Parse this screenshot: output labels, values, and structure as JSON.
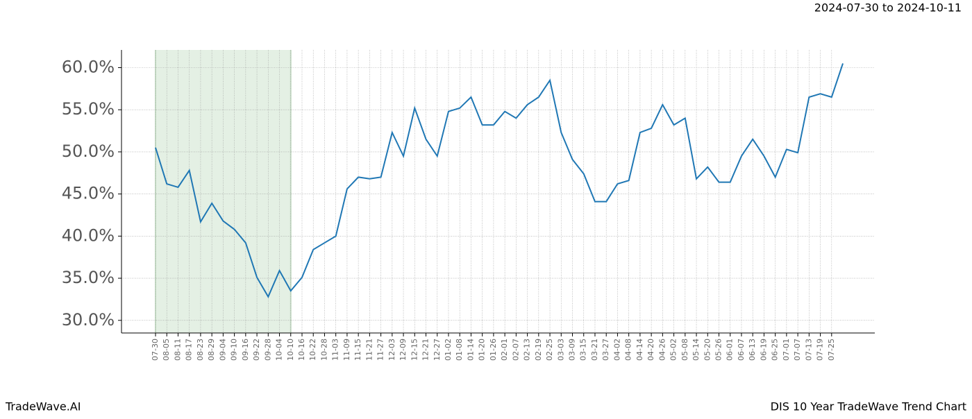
{
  "chart_data": {
    "type": "line",
    "subtitle": "2024-07-30 to 2024-10-11",
    "footer_left": "TradeWave.AI",
    "footer_right": "DIS 10 Year TradeWave Trend Chart",
    "categories": [
      "07-30",
      "08-05",
      "08-11",
      "08-17",
      "08-23",
      "08-29",
      "09-04",
      "09-10",
      "09-16",
      "09-22",
      "09-28",
      "10-04",
      "10-10",
      "10-16",
      "10-22",
      "10-28",
      "11-03",
      "11-09",
      "11-15",
      "11-21",
      "11-27",
      "12-03",
      "12-09",
      "12-15",
      "12-21",
      "12-27",
      "01-02",
      "01-08",
      "01-14",
      "01-20",
      "01-26",
      "02-01",
      "02-07",
      "02-13",
      "02-19",
      "02-25",
      "03-03",
      "03-09",
      "03-15",
      "03-21",
      "03-27",
      "04-02",
      "04-08",
      "04-14",
      "04-20",
      "04-26",
      "05-02",
      "05-08",
      "05-14",
      "05-20",
      "05-26",
      "06-01",
      "06-07",
      "06-13",
      "06-19",
      "06-25",
      "07-01",
      "07-07",
      "07-13",
      "07-19",
      "07-25",
      null
    ],
    "series": [
      {
        "color": "#1f77b4",
        "values": [
          50.5,
          46.2,
          45.8,
          47.8,
          41.7,
          43.9,
          41.8,
          40.8,
          39.2,
          35.1,
          32.8,
          35.9,
          33.5,
          35.1,
          38.4,
          39.2,
          40.0,
          45.6,
          47.0,
          46.8,
          47.0,
          52.3,
          49.5,
          55.2,
          51.5,
          49.5,
          54.8,
          55.2,
          56.5,
          53.2,
          53.2,
          54.8,
          54.0,
          55.6,
          56.5,
          58.5,
          52.3,
          49.1,
          47.4,
          44.1,
          44.1,
          46.2,
          46.6,
          52.3,
          52.8,
          55.6,
          53.2,
          54.0,
          46.8,
          48.2,
          46.4,
          46.4,
          49.5,
          51.5,
          49.5,
          47.0,
          50.3,
          49.9,
          56.5,
          56.9,
          56.5,
          60.5
        ]
      }
    ],
    "highlight": [
      "07-30",
      "10-10"
    ],
    "highlight_color": "#d9ead9",
    "ylim": [
      28.5,
      62.1
    ],
    "yticks": [
      {
        "value": 30,
        "label": "30.0%"
      },
      {
        "value": 35,
        "label": "35.0%"
      },
      {
        "value": 40,
        "label": "40.0%"
      },
      {
        "value": 45,
        "label": "45.0%"
      },
      {
        "value": 50,
        "label": "50.0%"
      },
      {
        "value": 55,
        "label": "55.0%"
      },
      {
        "value": 60,
        "label": "60.0%"
      }
    ],
    "grid": true
  }
}
